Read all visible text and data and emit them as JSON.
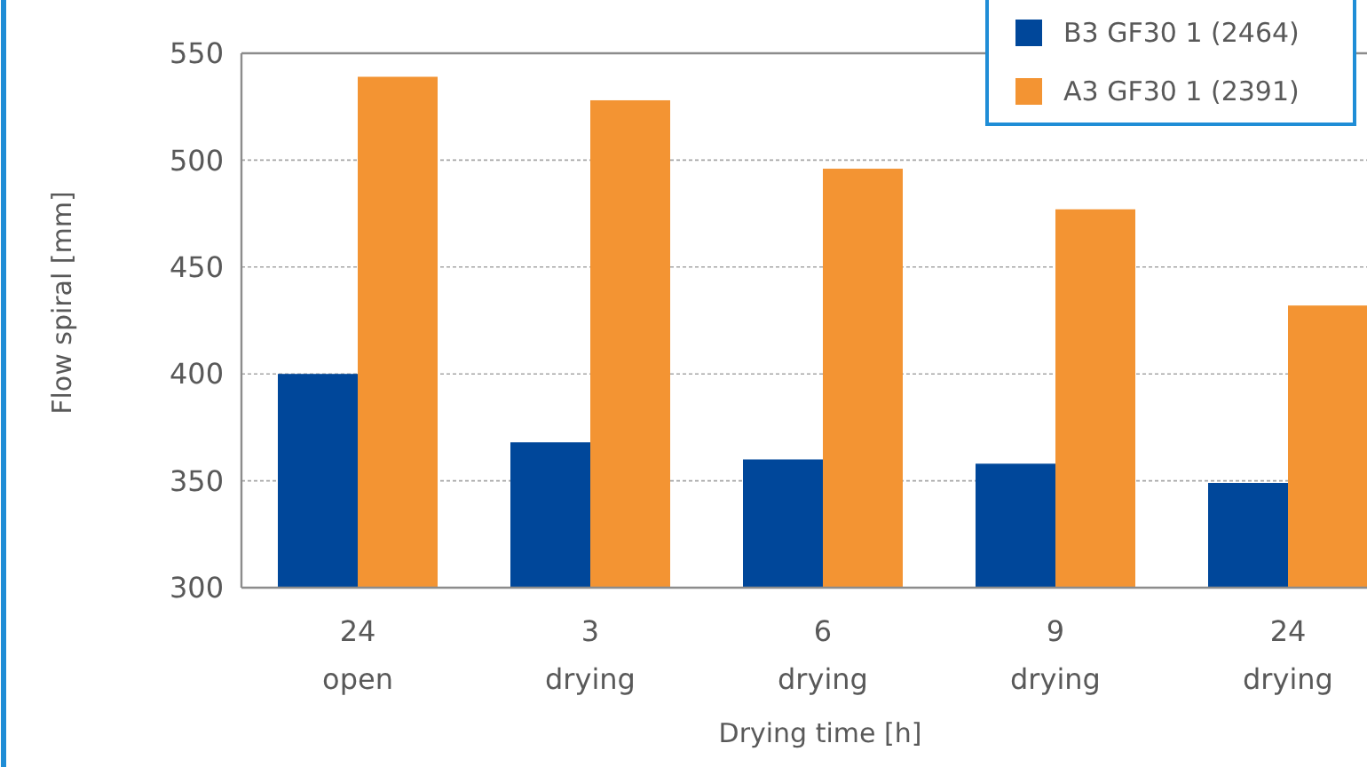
{
  "chart_data": {
    "type": "bar",
    "xlabel": "Drying time [h]",
    "ylabel": "Flow spiral [mm]",
    "categories": [
      "24\nopen",
      "3\ndrying",
      "6\ndrying",
      "9\ndrying",
      "24\ndrying"
    ],
    "series": [
      {
        "name": "B3 GF30 1 (2464)",
        "color": "#00479a",
        "values": [
          400,
          368,
          360,
          358,
          349
        ]
      },
      {
        "name": "A3 GF30 1 (2391)",
        "color": "#f39433",
        "values": [
          539,
          528,
          496,
          477,
          432
        ]
      }
    ],
    "ylim": [
      300,
      550
    ],
    "yticks": [
      300,
      350,
      400,
      450,
      500,
      550
    ],
    "grid": "y",
    "legend": "top right"
  }
}
